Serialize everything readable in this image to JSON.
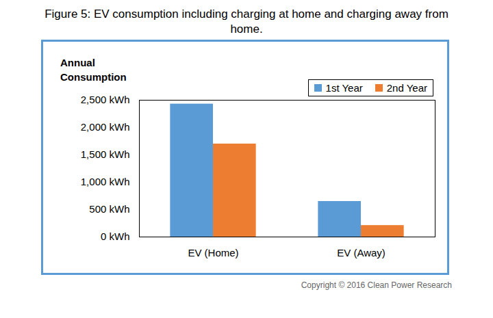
{
  "chart_data": {
    "type": "bar",
    "title": "Figure 5: EV consumption including charging at home and charging away from home.",
    "ylabel": "Annual Consumption",
    "categories": [
      "EV (Home)",
      "EV (Away)"
    ],
    "series": [
      {
        "name": "1st Year",
        "color": "#5b9bd5",
        "values": [
          2430,
          650
        ]
      },
      {
        "name": "2nd Year",
        "color": "#ed7d31",
        "values": [
          1700,
          210
        ]
      }
    ],
    "ylim": [
      0,
      2500
    ],
    "yticks": [
      {
        "value": 0,
        "label": "0 kWh"
      },
      {
        "value": 500,
        "label": "500 kWh"
      },
      {
        "value": 1000,
        "label": "1,000 kWh"
      },
      {
        "value": 1500,
        "label": "1,500 kWh"
      },
      {
        "value": 2000,
        "label": "2,000 kWh"
      },
      {
        "value": 2500,
        "label": "2,500 kWh"
      }
    ],
    "grid": false,
    "legend": "top-right",
    "caption": "Copyright © 2016 Clean Power Research"
  }
}
